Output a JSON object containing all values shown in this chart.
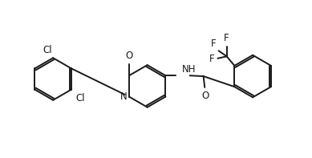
{
  "bg_color": "#ffffff",
  "line_color": "#1a1a1a",
  "line_width": 1.4,
  "font_size": 8.5,
  "fig_width": 3.89,
  "fig_height": 1.97,
  "dpi": 100,
  "xlim": [
    0,
    10
  ],
  "ylim": [
    0,
    5.06
  ]
}
